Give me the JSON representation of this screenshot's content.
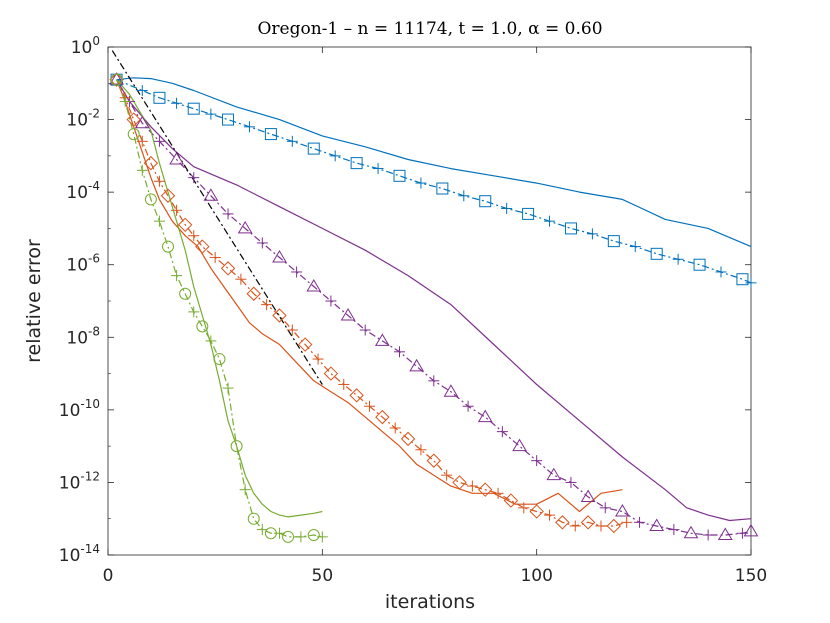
{
  "chart_data": {
    "type": "line",
    "title": "Oregon-1 – n = 11174, t = 1.0, α = 0.60",
    "xlabel": "iterations",
    "ylabel": "relative error",
    "xlim": [
      0,
      150
    ],
    "ylim_log10": [
      -14,
      0
    ],
    "yscale": "log",
    "xticks": [
      "0",
      "50",
      "100",
      "150"
    ],
    "ytick_mantissa": "10",
    "ytick_exponents": [
      "0",
      "-2",
      "-4",
      "-6",
      "-8",
      "-10",
      "-12",
      "-14"
    ],
    "grid": false,
    "colors": {
      "blue": "#0072BD",
      "purple": "#7E2F8E",
      "orange": "#D95319",
      "green": "#77AC30",
      "reference": "#000000"
    },
    "series": [
      {
        "name": "blue-solid",
        "color": "blue",
        "dash": "solid",
        "marker": "none",
        "x": [
          2,
          6,
          10,
          15,
          20,
          30,
          40,
          50,
          60,
          70,
          80,
          90,
          100,
          110,
          120,
          130,
          140,
          150
        ],
        "log10y": [
          -0.9,
          -0.85,
          -0.87,
          -1.0,
          -1.2,
          -1.65,
          -2.0,
          -2.45,
          -2.75,
          -3.1,
          -3.35,
          -3.55,
          -3.75,
          -4.0,
          -4.2,
          -4.75,
          -5.0,
          -5.5
        ]
      },
      {
        "name": "blue-dashdot",
        "color": "blue",
        "dash": "dashdot",
        "marker": "square+plus",
        "x": [
          2,
          8,
          12,
          16,
          20,
          24,
          28,
          33,
          38,
          43,
          48,
          53,
          58,
          63,
          68,
          73,
          78,
          83,
          88,
          93,
          98,
          103,
          108,
          113,
          118,
          123,
          128,
          133,
          138,
          143,
          148,
          150
        ],
        "log10y": [
          -0.9,
          -1.2,
          -1.4,
          -1.55,
          -1.7,
          -1.85,
          -2.0,
          -2.2,
          -2.4,
          -2.6,
          -2.8,
          -3.0,
          -3.2,
          -3.35,
          -3.55,
          -3.75,
          -3.9,
          -4.1,
          -4.25,
          -4.45,
          -4.6,
          -4.8,
          -5.0,
          -5.15,
          -5.35,
          -5.5,
          -5.7,
          -5.85,
          -6.0,
          -6.2,
          -6.4,
          -6.5
        ]
      },
      {
        "name": "purple-solid",
        "color": "purple",
        "dash": "solid",
        "marker": "none",
        "x": [
          2,
          5,
          10,
          15,
          20,
          30,
          40,
          50,
          60,
          70,
          80,
          90,
          100,
          110,
          120,
          130,
          135,
          140,
          145,
          150
        ],
        "log10y": [
          -0.9,
          -1.5,
          -2.2,
          -2.8,
          -3.3,
          -3.8,
          -4.4,
          -5.0,
          -5.6,
          -6.3,
          -7.1,
          -8.2,
          -9.3,
          -10.3,
          -11.3,
          -12.2,
          -12.7,
          -12.9,
          -13.05,
          -13.0
        ]
      },
      {
        "name": "purple-dashdot",
        "color": "purple",
        "dash": "dashdot",
        "marker": "triangle+plus",
        "x": [
          2,
          5,
          8,
          12,
          16,
          20,
          24,
          28,
          32,
          36,
          40,
          44,
          48,
          52,
          56,
          60,
          64,
          68,
          72,
          76,
          80,
          84,
          88,
          92,
          96,
          100,
          104,
          108,
          112,
          116,
          120,
          124,
          128,
          132,
          136,
          140,
          144,
          148,
          150
        ],
        "log10y": [
          -0.9,
          -1.5,
          -2.1,
          -2.6,
          -3.1,
          -3.6,
          -4.1,
          -4.6,
          -5.0,
          -5.4,
          -5.8,
          -6.2,
          -6.6,
          -7.0,
          -7.4,
          -7.8,
          -8.1,
          -8.4,
          -8.8,
          -9.2,
          -9.5,
          -9.9,
          -10.2,
          -10.6,
          -11.0,
          -11.4,
          -11.8,
          -12.0,
          -12.4,
          -12.7,
          -12.8,
          -13.1,
          -13.2,
          -13.3,
          -13.4,
          -13.45,
          -13.45,
          -13.4,
          -13.35
        ]
      },
      {
        "name": "orange-solid",
        "color": "orange",
        "dash": "solid",
        "marker": "none",
        "x": [
          2,
          4,
          6,
          8,
          10,
          12,
          15,
          18,
          21,
          24,
          27,
          30,
          33,
          36,
          40,
          44,
          48,
          52,
          56,
          60,
          64,
          68,
          72,
          76,
          80,
          85,
          90,
          95,
          100,
          105,
          110,
          115,
          120
        ],
        "log10y": [
          -0.9,
          -1.5,
          -2.2,
          -2.9,
          -3.6,
          -4.2,
          -4.8,
          -5.2,
          -5.5,
          -6.1,
          -6.6,
          -7.1,
          -7.6,
          -7.9,
          -8.2,
          -8.7,
          -9.2,
          -9.5,
          -9.8,
          -10.2,
          -10.6,
          -11.0,
          -11.5,
          -11.8,
          -12.1,
          -12.3,
          -12.3,
          -12.6,
          -12.6,
          -12.3,
          -12.8,
          -12.3,
          -12.2
        ]
      },
      {
        "name": "orange-dashdot",
        "color": "orange",
        "dash": "dashdot",
        "marker": "diamond+plus",
        "x": [
          2,
          4,
          6,
          8,
          10,
          12,
          14,
          16,
          18,
          20,
          22,
          25,
          28,
          31,
          34,
          37,
          40,
          43,
          46,
          49,
          52,
          55,
          58,
          61,
          64,
          67,
          70,
          73,
          76,
          79,
          82,
          85,
          88,
          91,
          94,
          97,
          100,
          103,
          106,
          109,
          112,
          115,
          118,
          121
        ],
        "log10y": [
          -0.9,
          -1.4,
          -2.0,
          -2.6,
          -3.2,
          -3.7,
          -4.1,
          -4.5,
          -4.9,
          -5.2,
          -5.5,
          -5.8,
          -6.1,
          -6.4,
          -6.8,
          -7.1,
          -7.4,
          -7.8,
          -8.2,
          -8.6,
          -9.0,
          -9.3,
          -9.6,
          -9.9,
          -10.2,
          -10.5,
          -10.8,
          -11.1,
          -11.4,
          -11.8,
          -12.0,
          -12.1,
          -12.2,
          -12.3,
          -12.5,
          -12.7,
          -12.8,
          -12.9,
          -13.1,
          -13.2,
          -13.1,
          -13.2,
          -13.2,
          -13.1
        ]
      },
      {
        "name": "green-solid",
        "color": "green",
        "dash": "solid",
        "marker": "none",
        "x": [
          2,
          5,
          8,
          10,
          12,
          14,
          16,
          18,
          20,
          22,
          24,
          26,
          28,
          30,
          32,
          34,
          36,
          38,
          40,
          42,
          45,
          48,
          50
        ],
        "log10y": [
          -0.9,
          -1.3,
          -1.9,
          -2.3,
          -3.2,
          -4.0,
          -4.8,
          -5.6,
          -6.6,
          -7.4,
          -8.2,
          -9.2,
          -10.3,
          -11.0,
          -11.8,
          -12.3,
          -12.6,
          -12.8,
          -12.9,
          -12.95,
          -12.9,
          -12.85,
          -12.8
        ]
      },
      {
        "name": "green-dashdot",
        "color": "green",
        "dash": "dashdot",
        "marker": "circle+plus",
        "x": [
          2,
          4,
          6,
          8,
          10,
          12,
          14,
          16,
          18,
          20,
          22,
          24,
          26,
          28,
          30,
          32,
          34,
          36,
          38,
          40,
          42,
          45,
          48,
          50
        ],
        "log10y": [
          -0.9,
          -1.5,
          -2.4,
          -3.4,
          -4.2,
          -4.8,
          -5.5,
          -6.3,
          -6.8,
          -7.3,
          -7.7,
          -8.1,
          -8.6,
          -9.4,
          -11.0,
          -12.2,
          -13.0,
          -13.3,
          -13.4,
          -13.4,
          -13.5,
          -13.5,
          -13.45,
          -13.5
        ]
      },
      {
        "name": "reference-dashdot",
        "color": "reference",
        "dash": "dashdot",
        "marker": "none",
        "x": [
          1,
          50
        ],
        "log10y": [
          -0.1,
          -9.3
        ]
      }
    ]
  }
}
